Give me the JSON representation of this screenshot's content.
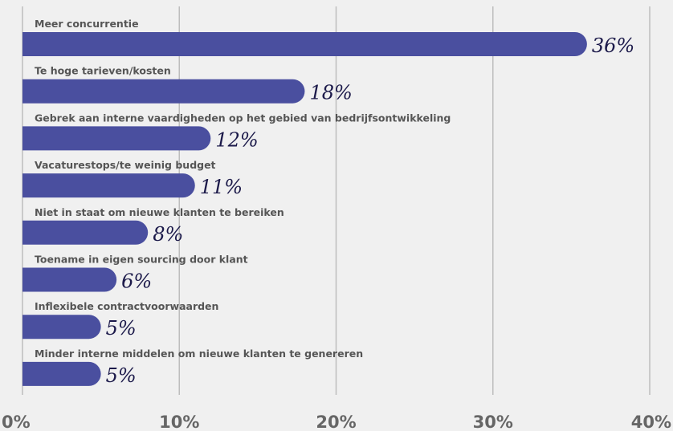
{
  "chart_data": {
    "type": "bar",
    "orientation": "horizontal",
    "categories": [
      "Meer concurrentie",
      "Te hoge tarieven/kosten",
      "Gebrek aan interne vaardigheden op het gebied van bedrijfsontwikkeling",
      "Vacaturestops/te weinig budget",
      "Niet in staat om nieuwe klanten te bereiken",
      "Toename in eigen sourcing door klant",
      "Inflexibele contractvoorwaarden",
      "Minder interne middelen om nieuwe klanten te genereren"
    ],
    "values": [
      36,
      18,
      12,
      11,
      8,
      6,
      5,
      5
    ],
    "value_labels": [
      "36%",
      "18%",
      "12%",
      "11%",
      "8%",
      "6%",
      "5%",
      "5%"
    ],
    "xlim": [
      0,
      40
    ],
    "xticks": [
      0,
      10,
      20,
      30,
      40
    ],
    "xtick_labels": [
      "0%",
      "10%",
      "20%",
      "30%",
      "40%"
    ],
    "title": "",
    "xlabel": "",
    "ylabel": "",
    "grid": "vertical",
    "legend": "none",
    "colors": {
      "bar": "#4a4f9f",
      "background": "#f0f0f0",
      "grid": "#bdbdbd",
      "value_text": "#1c1a4a",
      "category_text": "#555555"
    }
  }
}
